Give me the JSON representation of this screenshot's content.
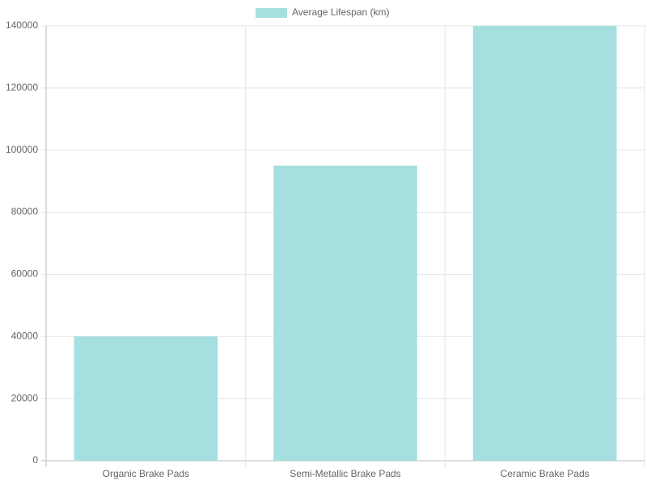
{
  "chart_data": {
    "type": "bar",
    "categories": [
      "Organic Brake Pads",
      "Semi-Metallic Brake Pads",
      "Ceramic Brake Pads"
    ],
    "series": [
      {
        "name": "Average Lifespan (km)",
        "color": "#a6dfdf",
        "values": [
          40000,
          95000,
          140000
        ]
      }
    ],
    "ylim": [
      0,
      140000
    ],
    "yticks": [
      0,
      20000,
      40000,
      60000,
      80000,
      100000,
      120000,
      140000
    ],
    "grid": true,
    "legend": "top"
  }
}
